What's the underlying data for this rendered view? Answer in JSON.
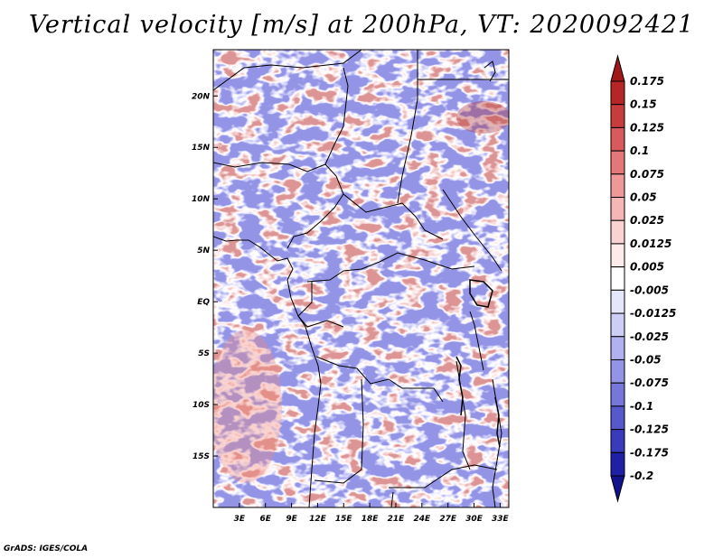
{
  "title": "Vertical velocity [m/s] at 200hPa, VT: 2020092421",
  "footer": "GrADS: IGES/COLA",
  "map": {
    "lat_labels": [
      "20N",
      "15N",
      "10N",
      "5N",
      "EQ",
      "5S",
      "10S",
      "15S"
    ],
    "lat_values": [
      20,
      15,
      10,
      5,
      0,
      -5,
      -10,
      -15
    ],
    "lon_labels": [
      "3E",
      "6E",
      "9E",
      "12E",
      "15E",
      "18E",
      "21E",
      "24E",
      "27E",
      "30E",
      "33E"
    ],
    "lon_values": [
      3,
      6,
      9,
      12,
      15,
      18,
      21,
      24,
      27,
      30,
      33
    ],
    "lon_range": [
      0,
      34
    ],
    "lat_range": [
      -20,
      24.5
    ]
  },
  "colorbar": {
    "labels": [
      "0.175",
      "0.15",
      "0.125",
      "0.1",
      "0.075",
      "0.05",
      "0.025",
      "0.0125",
      "0.005",
      "-0.005",
      "-0.0125",
      "-0.025",
      "-0.05",
      "-0.075",
      "-0.1",
      "-0.125",
      "-0.175",
      "-0.2"
    ],
    "colors": [
      "#a01818",
      "#b62626",
      "#c83c3c",
      "#d85a5a",
      "#e47878",
      "#ee9898",
      "#f5b6b6",
      "#fad2d2",
      "#fdeaea",
      "#ffffff",
      "#e6e6fb",
      "#cdcdf6",
      "#b1b1ef",
      "#9494e6",
      "#7676db",
      "#5858cd",
      "#3a3abd",
      "#2020a6",
      "#12128c"
    ]
  },
  "colors": {
    "positive": "#cc3333",
    "negative": "#3333cc",
    "border": "#000000"
  }
}
